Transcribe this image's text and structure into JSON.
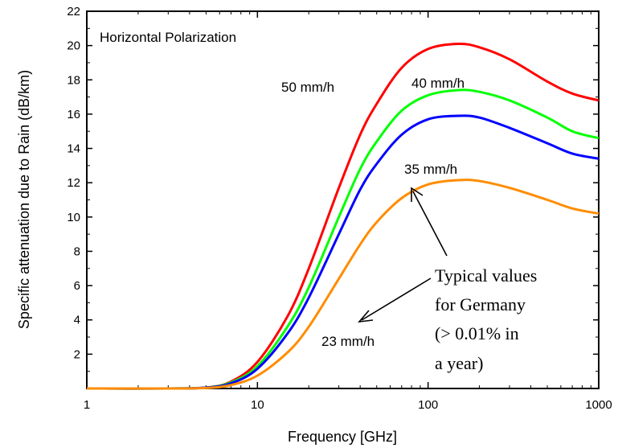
{
  "chart_data": {
    "type": "line",
    "title": "",
    "xlabel": "Frequency [GHz]",
    "ylabel": "Specific attenuation due to Rain (dB/km)",
    "x_scale": "log",
    "xlim": [
      1,
      1000
    ],
    "ylim": [
      0,
      22
    ],
    "x_ticks": [
      1,
      10,
      100,
      1000
    ],
    "y_ticks": [
      2,
      4,
      6,
      8,
      10,
      12,
      14,
      16,
      18,
      20,
      22
    ],
    "grid": false,
    "series": [
      {
        "name": "50 mm/h",
        "color": "#ff0000",
        "x": [
          1,
          3,
          5,
          7,
          10,
          15,
          20,
          30,
          40,
          50,
          70,
          100,
          150,
          200,
          300,
          500,
          700,
          1000
        ],
        "values": [
          0,
          0,
          0.05,
          0.4,
          1.55,
          4.2,
          7.0,
          11.7,
          14.8,
          16.6,
          18.7,
          19.8,
          20.1,
          19.9,
          19.2,
          17.9,
          17.2,
          16.8
        ]
      },
      {
        "name": "40 mm/h",
        "color": "#00ff00",
        "x": [
          1,
          3,
          5,
          7,
          10,
          15,
          20,
          30,
          40,
          50,
          70,
          100,
          150,
          200,
          300,
          500,
          700,
          1000
        ],
        "values": [
          0,
          0,
          0.05,
          0.35,
          1.3,
          3.6,
          5.9,
          10.0,
          12.8,
          14.4,
          16.2,
          17.1,
          17.4,
          17.3,
          16.8,
          15.8,
          15.0,
          14.6
        ]
      },
      {
        "name": "35 mm/h",
        "color": "#0000ff",
        "x": [
          1,
          3,
          5,
          7,
          10,
          15,
          20,
          30,
          40,
          50,
          70,
          100,
          150,
          200,
          300,
          500,
          700,
          1000
        ],
        "values": [
          0,
          0,
          0.05,
          0.3,
          1.15,
          3.2,
          5.3,
          9.0,
          11.6,
          13.1,
          14.8,
          15.7,
          15.9,
          15.8,
          15.2,
          14.3,
          13.7,
          13.4
        ]
      },
      {
        "name": "23 mm/h",
        "color": "#ff8c00",
        "x": [
          1,
          3,
          5,
          7,
          10,
          15,
          20,
          30,
          40,
          50,
          70,
          100,
          150,
          200,
          300,
          500,
          700,
          1000
        ],
        "values": [
          0,
          0,
          0.03,
          0.2,
          0.75,
          2.1,
          3.6,
          6.4,
          8.4,
          9.7,
          11.1,
          11.9,
          12.15,
          12.1,
          11.7,
          11.0,
          10.5,
          10.2
        ]
      }
    ],
    "annotations": {
      "panel_title": "Horizontal Polarization",
      "label_50": "50 mm/h",
      "label_40": "40 mm/h",
      "label_35": "35 mm/h",
      "label_23": "23 mm/h",
      "note_lines": [
        "Typical values",
        "for Germany",
        "(> 0.01% in",
        "a year)"
      ]
    }
  }
}
